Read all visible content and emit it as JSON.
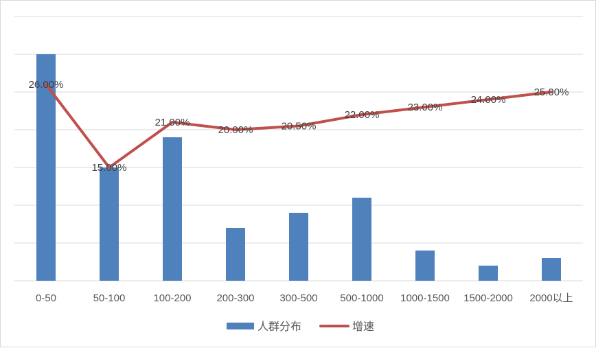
{
  "chart_data": {
    "type": "bar+line",
    "categories": [
      "0-50",
      "50-100",
      "100-200",
      "200-300",
      "300-500",
      "500-1000",
      "1000-1500",
      "1500-2000",
      "2000以上"
    ],
    "series": [
      {
        "name": "人群分布",
        "type": "bar",
        "color": "#4f81bd",
        "values": [
          30.0,
          15.0,
          19.0,
          7.0,
          9.0,
          11.0,
          4.0,
          2.0,
          3.0
        ]
      },
      {
        "name": "增速",
        "type": "line",
        "color": "#c0504d",
        "values": [
          26.0,
          15.0,
          21.0,
          20.0,
          20.5,
          22.0,
          23.0,
          24.0,
          25.0
        ],
        "labels": [
          "26.00%",
          "15.00%",
          "21.00%",
          "20.00%",
          "20.50%",
          "22.00%",
          "23.00%",
          "24.00%",
          "25.00%"
        ]
      }
    ],
    "ylim": [
      0,
      35
    ],
    "grid": true,
    "legend_position": "bottom"
  }
}
